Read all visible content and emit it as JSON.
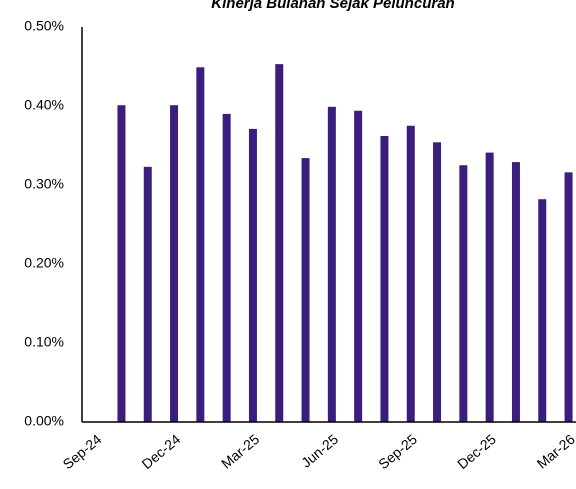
{
  "chart_data": {
    "type": "bar",
    "title": "Kinerja Bulanan Sejak Peluncuran",
    "categories": [
      "Sep-24",
      null,
      null,
      "Dec-24",
      null,
      null,
      "Mar-25",
      null,
      null,
      "Jun-25",
      null,
      null,
      "Sep-25",
      null,
      null,
      "Dec-25",
      null,
      null,
      "Mar-26"
    ],
    "values": [
      null,
      0.401,
      0.323,
      0.401,
      0.449,
      0.39,
      0.371,
      0.453,
      0.334,
      0.399,
      0.394,
      0.362,
      0.375,
      0.354,
      0.325,
      0.341,
      0.329,
      0.282,
      0.316
    ],
    "color": "#3a1d7c",
    "ylim": [
      0,
      0.5
    ],
    "yticks": [
      {
        "value": 0,
        "label": "0.00%"
      },
      {
        "value": 0.1,
        "label": "0.10%"
      },
      {
        "value": 0.2,
        "label": "0.20%"
      },
      {
        "value": 0.3,
        "label": "0.30%"
      },
      {
        "value": 0.4,
        "label": "0.40%"
      },
      {
        "value": 0.5,
        "label": "0.50%"
      }
    ],
    "grid": false
  }
}
